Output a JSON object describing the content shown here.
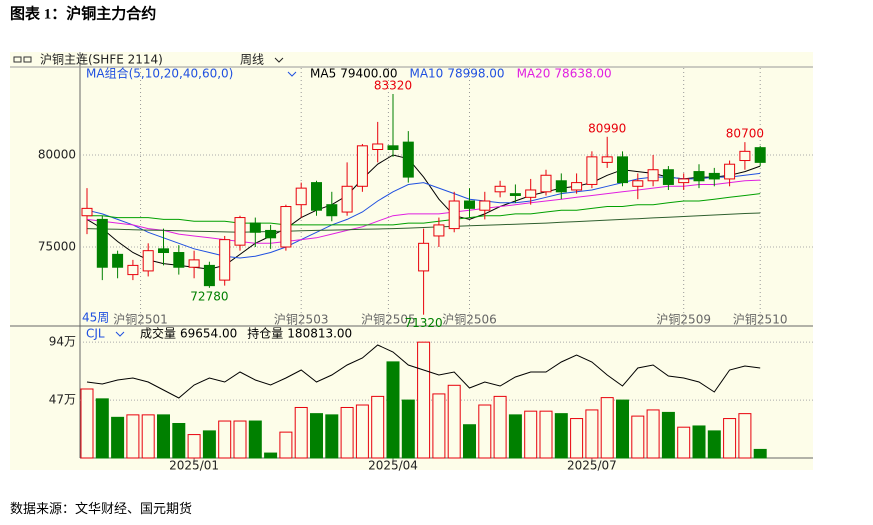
{
  "title": "图表 1：沪铜主力合约",
  "source": "数据来源：文华财经、国元期货",
  "chart_data": {
    "type": "candlestick",
    "header": {
      "symbol": "沪铜主连(SHFE 2114)",
      "period": "周线",
      "ma_group": "MA组合(5,10,20,40,60,0)",
      "count_label": "45周"
    },
    "categories": [
      null,
      null,
      null,
      null,
      null,
      null,
      null,
      "2025/01",
      null,
      null,
      null,
      null,
      null,
      null,
      null,
      null,
      null,
      null,
      null,
      null,
      "2025/04",
      null,
      null,
      null,
      null,
      null,
      null,
      null,
      null,
      null,
      null,
      null,
      null,
      "2025/07",
      null,
      null,
      null,
      null,
      null,
      null,
      null,
      null,
      null,
      null,
      null
    ],
    "open": [
      76700,
      76500,
      74600,
      73500,
      73700,
      74900,
      74700,
      73900,
      74000,
      73200,
      75100,
      76300,
      75900,
      75000,
      77300,
      78500,
      77300,
      76900,
      78300,
      80300,
      80500,
      80700,
      73700,
      75600,
      76000,
      77500,
      77000,
      78000,
      77900,
      77700,
      78000,
      78600,
      78100,
      78400,
      79600,
      79900,
      78300,
      78600,
      79200,
      78500,
      79100,
      79000,
      78700,
      79700,
      80400
    ],
    "high": [
      78200,
      76700,
      74800,
      74300,
      75200,
      76000,
      75100,
      74800,
      74200,
      75600,
      76700,
      76600,
      76200,
      77300,
      78500,
      78600,
      78000,
      79600,
      80600,
      81800,
      83320,
      81300,
      76000,
      76600,
      78000,
      78200,
      78000,
      78600,
      78400,
      78700,
      79200,
      79000,
      79000,
      80200,
      80990,
      80200,
      79000,
      80000,
      79400,
      79000,
      79500,
      79300,
      79700,
      80700,
      80500
    ],
    "low": [
      75700,
      73200,
      73300,
      73200,
      73400,
      74000,
      73500,
      73300,
      72780,
      72900,
      74800,
      75000,
      74900,
      74800,
      76600,
      76700,
      76400,
      76700,
      78000,
      79600,
      79900,
      78500,
      71320,
      75000,
      75800,
      76600,
      76500,
      77700,
      77400,
      77300,
      77800,
      77600,
      77900,
      78200,
      79300,
      78300,
      77600,
      78300,
      78100,
      78100,
      78200,
      78300,
      78300,
      79200,
      79400
    ],
    "close": [
      77100,
      73900,
      73900,
      74000,
      74800,
      74700,
      73900,
      74300,
      72900,
      75400,
      76600,
      75800,
      75500,
      77200,
      78200,
      77000,
      76700,
      78300,
      80500,
      80600,
      80300,
      78800,
      75200,
      76200,
      77500,
      77100,
      77500,
      78300,
      77800,
      78100,
      78900,
      78000,
      78500,
      79900,
      79900,
      78500,
      78600,
      79200,
      78400,
      78700,
      78600,
      78700,
      79500,
      80200,
      79600
    ],
    "up_color": "#e8000b",
    "down_color": "#008000",
    "ylim": [
      70760,
      84730
    ],
    "yticks": [
      75000,
      80000
    ],
    "series": [
      {
        "name": "MA5",
        "color": "#000000",
        "legend_label": "79400.00",
        "values": [
          76500,
          76000,
          75300,
          74700,
          74300,
          74100,
          74000,
          73900,
          73800,
          74000,
          74600,
          75200,
          75600,
          76000,
          76600,
          77000,
          77300,
          77800,
          78700,
          79500,
          80000,
          79800,
          78800,
          77600,
          76700,
          76500,
          76800,
          77200,
          77500,
          77800,
          78000,
          78200,
          78300,
          78500,
          78900,
          79200,
          79100,
          79000,
          78800,
          78700,
          78800,
          78800,
          78900,
          79100,
          79400
        ]
      },
      {
        "name": "MA10",
        "color": "#2050e0",
        "legend_label": "78998.00",
        "values": [
          77000,
          76800,
          76500,
          76200,
          75800,
          75500,
          75200,
          74900,
          74700,
          74500,
          74400,
          74500,
          74700,
          75000,
          75400,
          75800,
          76200,
          76500,
          76900,
          77500,
          78000,
          78400,
          78500,
          78200,
          77900,
          77600,
          77500,
          77400,
          77400,
          77500,
          77700,
          77900,
          78000,
          78100,
          78300,
          78500,
          78700,
          78800,
          78800,
          78700,
          78700,
          78800,
          78800,
          78900,
          78998
        ]
      },
      {
        "name": "MA20",
        "color": "#e020e0",
        "legend_label": "78638.00",
        "values": [
          76500,
          76400,
          76300,
          76200,
          76000,
          75900,
          75700,
          75600,
          75500,
          75400,
          75300,
          75200,
          75200,
          75300,
          75400,
          75500,
          75700,
          75900,
          76100,
          76400,
          76700,
          76800,
          76800,
          76800,
          76900,
          77000,
          77100,
          77200,
          77300,
          77400,
          77500,
          77600,
          77700,
          77800,
          77900,
          78000,
          78100,
          78200,
          78300,
          78300,
          78400,
          78400,
          78500,
          78600,
          78638
        ]
      },
      {
        "color": "#00a000",
        "values": [
          76700,
          76700,
          76600,
          76600,
          76600,
          76500,
          76500,
          76400,
          76400,
          76400,
          76300,
          76300,
          76300,
          76200,
          76200,
          76200,
          76200,
          76200,
          76200,
          76200,
          76200,
          76300,
          76300,
          76400,
          76500,
          76600,
          76700,
          76700,
          76800,
          76800,
          76900,
          77000,
          77000,
          77100,
          77200,
          77200,
          77300,
          77300,
          77400,
          77500,
          77500,
          77600,
          77700,
          77800,
          77900
        ]
      },
      {
        "color": "#306030",
        "values": [
          76000,
          75980,
          75960,
          75940,
          75920,
          75900,
          75880,
          75860,
          75840,
          75820,
          75800,
          75820,
          75840,
          75860,
          75880,
          75900,
          75920,
          75940,
          75960,
          75980,
          76000,
          76030,
          76060,
          76090,
          76120,
          76150,
          76180,
          76210,
          76240,
          76270,
          76300,
          76340,
          76380,
          76420,
          76460,
          76500,
          76540,
          76580,
          76620,
          76660,
          76700,
          76740,
          76780,
          76820,
          76850
        ]
      }
    ],
    "annotations": [
      {
        "index": 20,
        "value": 83320,
        "side": "high",
        "color": "#e8000b"
      },
      {
        "index": 34,
        "value": 80990,
        "side": "high",
        "color": "#e8000b"
      },
      {
        "index": 43,
        "value": 80700,
        "side": "high",
        "color": "#e8000b"
      },
      {
        "index": 8,
        "value": 72780,
        "side": "low",
        "color": "#008000"
      },
      {
        "index": 22,
        "value": 71320,
        "side": "low",
        "color": "#008000"
      }
    ],
    "contracts": [
      {
        "index": 3.5,
        "label": "沪铜2501"
      },
      {
        "index": 14,
        "label": "沪铜2503"
      },
      {
        "index": 19.7,
        "label": "沪铜2505"
      },
      {
        "index": 25,
        "label": "沪铜2506"
      },
      {
        "index": 39,
        "label": "沪铜2509"
      },
      {
        "index": 44,
        "label": "沪铜2510"
      }
    ],
    "volume": {
      "indicator": "CJL",
      "name": "成交量",
      "legend_label": "69654.00",
      "values": [
        56,
        48,
        33,
        35,
        35,
        35,
        28,
        19,
        22,
        30,
        30,
        30,
        4,
        21,
        41,
        36,
        35,
        41,
        43,
        50,
        78,
        47,
        94,
        52,
        59,
        27,
        43,
        50,
        35,
        38,
        38,
        36,
        32,
        39,
        49,
        47,
        34,
        39,
        37,
        25,
        26,
        22,
        32,
        36,
        6.9654
      ],
      "ylim": [
        0,
        99
      ],
      "yticks": [
        {
          "value": 47,
          "label": "47万"
        },
        {
          "value": 94,
          "label": "94万"
        }
      ],
      "oi": {
        "name": "持仓量",
        "legend_label": "180813.00",
        "color": "#000000",
        "ylim": [
          13.58,
          19.68
        ],
        "values": [
          17.38,
          17.28,
          17.48,
          17.58,
          17.38,
          16.98,
          16.58,
          17.23,
          17.58,
          17.38,
          17.88,
          17.48,
          17.23,
          17.58,
          17.98,
          17.38,
          17.73,
          18.23,
          18.58,
          19.23,
          18.88,
          18.23,
          17.98,
          17.73,
          17.88,
          17.08,
          17.38,
          17.18,
          17.63,
          17.88,
          17.88,
          18.38,
          18.73,
          18.38,
          17.73,
          17.18,
          18.08,
          18.23,
          17.68,
          17.58,
          17.38,
          16.88,
          17.98,
          18.18,
          18.0813
        ]
      }
    }
  }
}
